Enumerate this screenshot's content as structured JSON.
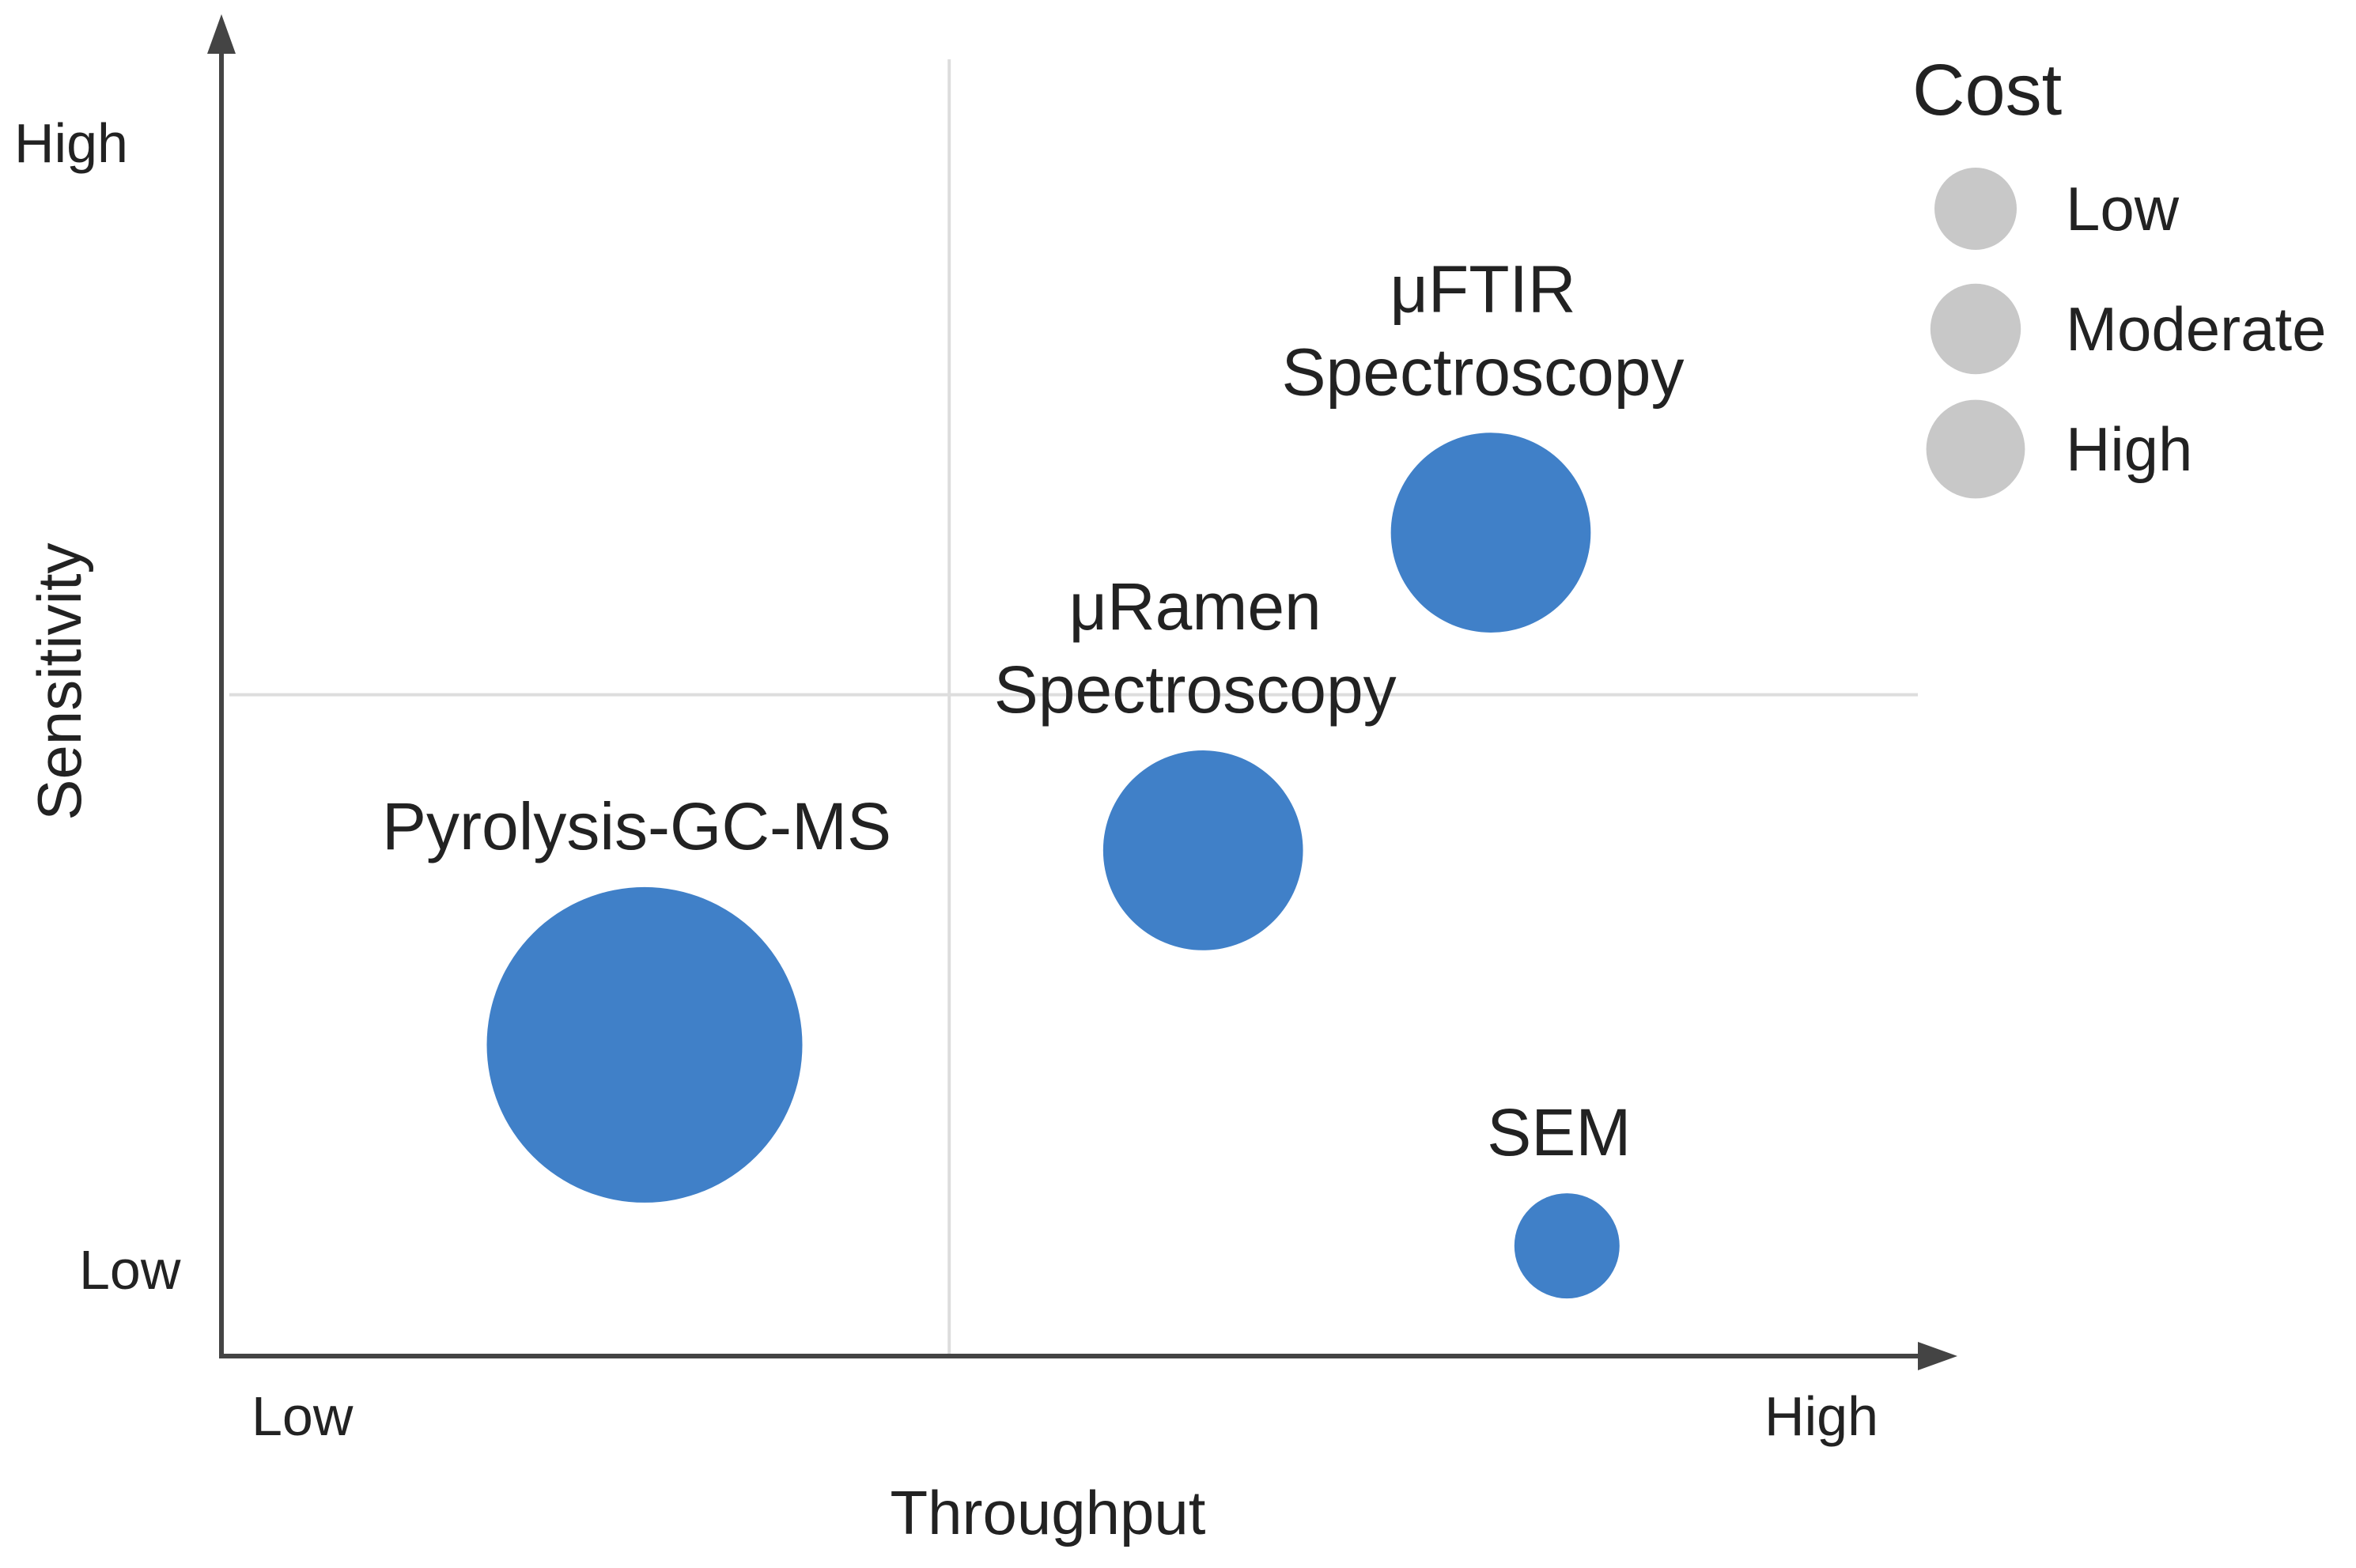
{
  "chart_data": {
    "type": "scatter",
    "subtype": "bubble",
    "title": "",
    "xlabel": "Throughput",
    "ylabel": "Sensitivity",
    "x_axis": {
      "low_label": "Low",
      "high_label": "High",
      "range": [
        0,
        10
      ]
    },
    "y_axis": {
      "low_label": "Low",
      "high_label": "High",
      "range": [
        0,
        10
      ]
    },
    "quadrant_lines": {
      "x": 4.3,
      "y": 5.1
    },
    "series": [
      {
        "name": "Pyrolysis-GC-MS",
        "label_lines": [
          "Pyrolysis-GC-MS"
        ],
        "x": 2.5,
        "y": 2.4,
        "cost": "High",
        "size": 3.0
      },
      {
        "name": "μRamen Spectroscopy",
        "label_lines": [
          "μRamen",
          "Spectroscopy"
        ],
        "x": 5.8,
        "y": 3.9,
        "cost": "Moderate",
        "size": 1.9
      },
      {
        "name": "μFTIR Spectroscopy",
        "label_lines": [
          "μFTIR",
          "Spectroscopy"
        ],
        "x": 7.5,
        "y": 6.35,
        "cost": "Moderate",
        "size": 1.9
      },
      {
        "name": "SEM",
        "label_lines": [
          "SEM"
        ],
        "x": 7.95,
        "y": 0.85,
        "cost": "Low",
        "size": 1.0
      }
    ],
    "legend": {
      "title": "Cost",
      "position": "top-right",
      "items": [
        {
          "label": "Low",
          "size": 1.0
        },
        {
          "label": "Moderate",
          "size": 1.1
        },
        {
          "label": "High",
          "size": 1.2
        }
      ]
    },
    "colors": {
      "bubble": "#4080C8",
      "legend_bubble": "#C8C8C8",
      "axis": "#444444",
      "grid": "#DDDDDD"
    }
  }
}
